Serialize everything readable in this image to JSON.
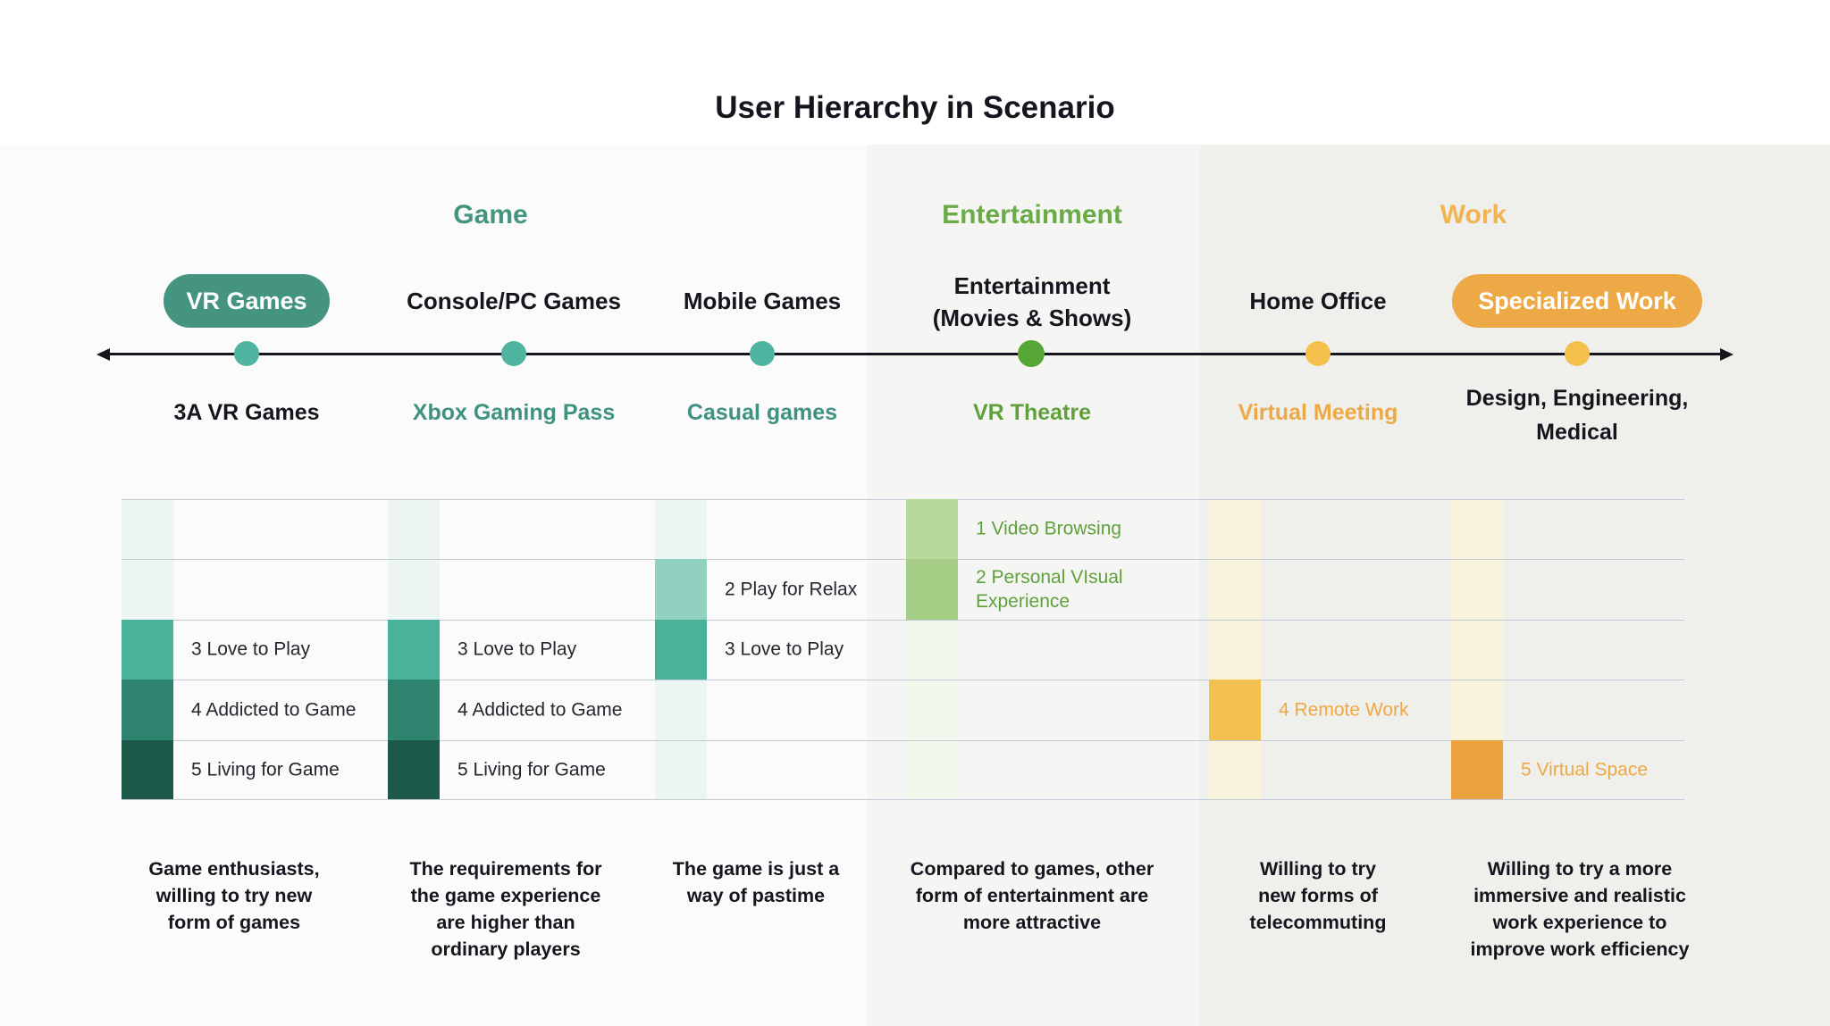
{
  "title": "User Hierarchy in Scenario",
  "sections": {
    "game": "Game",
    "entertainment": "Entertainment",
    "work": "Work"
  },
  "timeline": [
    {
      "label": "VR Games",
      "sub": "3A VR Games",
      "desc": "Game enthusiasts,\nwilling to try new\nform of games"
    },
    {
      "label": "Console/PC Games",
      "sub": "Xbox Gaming Pass",
      "desc": "The requirements for\nthe game experience\nare higher than\nordinary players"
    },
    {
      "label": "Mobile Games",
      "sub": "Casual games",
      "desc": "The game is just a\nway of pastime"
    },
    {
      "label": "Entertainment\n(Movies & Shows)",
      "sub": "VR Theatre",
      "desc": "Compared to games, other\nform of entertainment are\nmore attractive"
    },
    {
      "label": "Home Office",
      "sub": "Virtual Meeting",
      "desc": "Willing to try\nnew forms of\ntelecommuting"
    },
    {
      "label": "Specialized Work",
      "sub": "Design, Engineering,\nMedical",
      "desc": "Willing to try a more\nimmersive and realistic\nwork experience to\nimprove work efficiency"
    }
  ],
  "matrix": {
    "cells": [
      {
        "column": "Entertainment (Movies & Shows)",
        "row": 1,
        "label": "1 Video Browsing"
      },
      {
        "column": "Mobile Games",
        "row": 2,
        "label": "2 Play for Relax"
      },
      {
        "column": "Entertainment (Movies & Shows)",
        "row": 2,
        "label": "2 Personal VIsual\nExperience"
      },
      {
        "column": "VR Games",
        "row": 3,
        "label": "3 Love to Play"
      },
      {
        "column": "Console/PC Games",
        "row": 3,
        "label": "3 Love to Play"
      },
      {
        "column": "Mobile Games",
        "row": 3,
        "label": "3 Love to Play"
      },
      {
        "column": "VR Games",
        "row": 4,
        "label": "4 Addicted to Game"
      },
      {
        "column": "Console/PC Games",
        "row": 4,
        "label": "4 Addicted to Game"
      },
      {
        "column": "Home Office",
        "row": 4,
        "label": "4 Remote Work"
      },
      {
        "column": "VR Games",
        "row": 5,
        "label": "5 Living for Game"
      },
      {
        "column": "Console/PC Games",
        "row": 5,
        "label": "5 Living for Game"
      },
      {
        "column": "Specialized Work",
        "row": 5,
        "label": "5 Virtual Space"
      }
    ]
  },
  "colors": {
    "teal_header": "#45947f",
    "teal_dot": "#4fb5a0",
    "teal_text": "#3f9180",
    "green_header": "#6bab47",
    "green_dot": "#57a738",
    "green_text": "#5fa03c",
    "work_header": "#f2b355",
    "yellow_dot": "#f2c04b",
    "orange_pill": "#eda946",
    "orange_text": "#eea946",
    "cell_teal_level3": "#49b29a",
    "cell_teal_level4": "#2f8470",
    "cell_teal_level5": "#1d5948",
    "cell_teal_level2": "#90d1c0",
    "cell_green_level1": "#b6d99b",
    "cell_green_level2": "#a5cd85",
    "cell_yellow_level4": "#f2c150",
    "cell_orange_level5": "#eba23f"
  }
}
